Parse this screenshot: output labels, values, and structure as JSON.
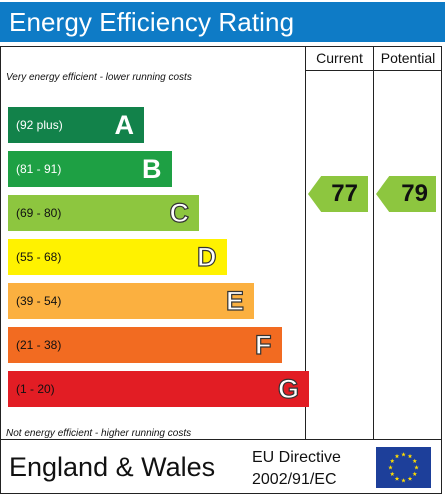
{
  "title": "Energy Efficiency Rating",
  "columns": {
    "current": "Current",
    "potential": "Potential"
  },
  "notes": {
    "top": "Very energy efficient - lower running costs",
    "bottom": "Not energy efficient - higher running costs"
  },
  "bands": [
    {
      "range": "(92 plus)",
      "letter": "A",
      "color": "#12824a",
      "text_color": "#ffffff"
    },
    {
      "range": "(81 - 91)",
      "letter": "B",
      "color": "#1ea044",
      "text_color": "#ffffff"
    },
    {
      "range": "(69 - 80)",
      "letter": "C",
      "color": "#8dc63f",
      "text_color": "#111111"
    },
    {
      "range": "(55 - 68)",
      "letter": "D",
      "color": "#fff200",
      "text_color": "#111111"
    },
    {
      "range": "(39 - 54)",
      "letter": "E",
      "color": "#fbb040",
      "text_color": "#111111"
    },
    {
      "range": "(21 - 38)",
      "letter": "F",
      "color": "#f26b21",
      "text_color": "#111111"
    },
    {
      "range": "(1 - 20)",
      "letter": "G",
      "color": "#e21d24",
      "text_color": "#111111"
    }
  ],
  "ratings": {
    "current": {
      "value": "77",
      "band": "C",
      "color": "#8dc63f"
    },
    "potential": {
      "value": "79",
      "band": "C",
      "color": "#8dc63f"
    }
  },
  "footer": {
    "country": "England & Wales",
    "directive_line1": "EU Directive",
    "directive_line2": "2002/91/EC"
  },
  "icons": {
    "flag": "eu-flag-icon"
  }
}
